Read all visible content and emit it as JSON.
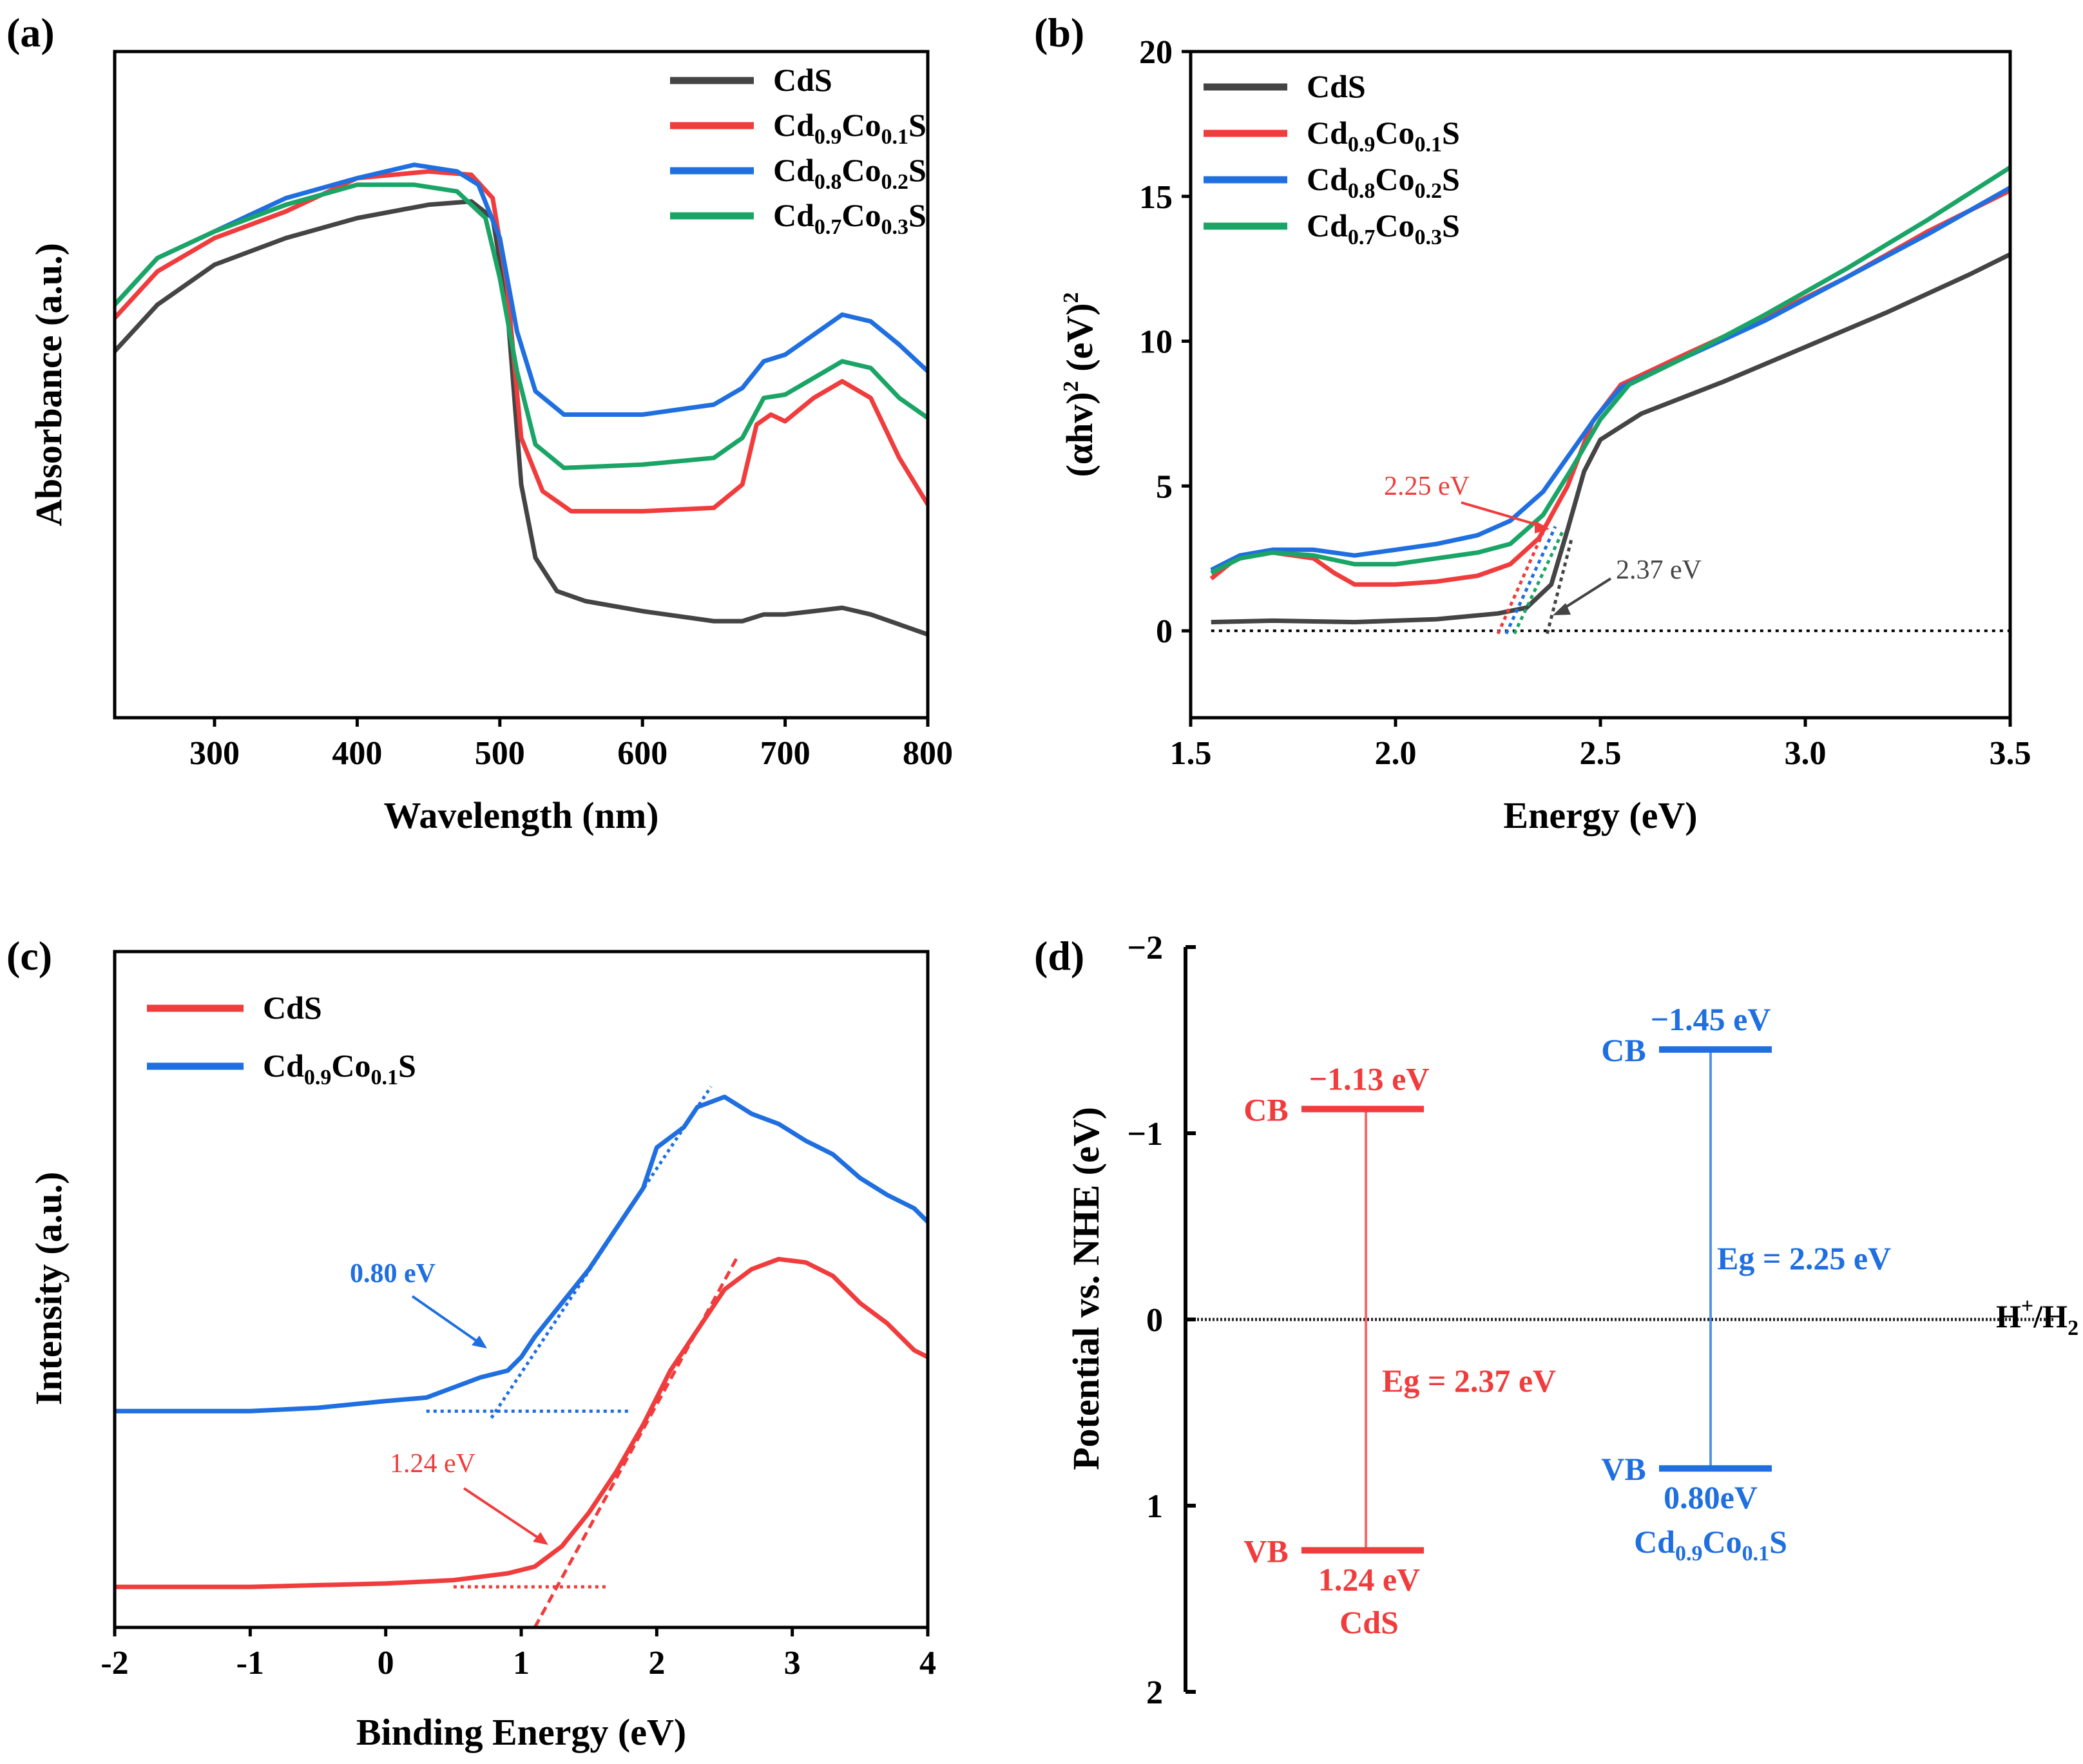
{
  "chart_data": [
    {
      "id": "a",
      "type": "line",
      "panel_label": "(a)",
      "xlabel": "Wavelength (nm)",
      "ylabel": "Absorbance (a.u.)",
      "xlim": [
        230,
        800
      ],
      "ylim": [
        0,
        1.0
      ],
      "xticks": [
        "300",
        "400",
        "500",
        "600",
        "700",
        "800"
      ],
      "yticks_shown": false,
      "legend_position": "top-right",
      "series": [
        {
          "name": "CdS",
          "base": "Cd",
          "sub1": "",
          "mid": "S",
          "sub2": "",
          "tail": "",
          "color": "#444444",
          "points": [
            [
              230,
              0.55
            ],
            [
              260,
              0.62
            ],
            [
              300,
              0.68
            ],
            [
              350,
              0.72
            ],
            [
              400,
              0.75
            ],
            [
              450,
              0.77
            ],
            [
              480,
              0.775
            ],
            [
              495,
              0.75
            ],
            [
              505,
              0.62
            ],
            [
              515,
              0.35
            ],
            [
              525,
              0.24
            ],
            [
              540,
              0.19
            ],
            [
              560,
              0.175
            ],
            [
              600,
              0.16
            ],
            [
              650,
              0.145
            ],
            [
              670,
              0.145
            ],
            [
              685,
              0.155
            ],
            [
              700,
              0.155
            ],
            [
              720,
              0.16
            ],
            [
              740,
              0.165
            ],
            [
              760,
              0.155
            ],
            [
              780,
              0.14
            ],
            [
              800,
              0.125
            ]
          ]
        },
        {
          "name": "Cd0.9Co0.1S",
          "base": "Cd",
          "sub1": "0.9",
          "mid": "Co",
          "sub2": "0.1",
          "tail": "S",
          "color": "#f03c3c",
          "points": [
            [
              230,
              0.6
            ],
            [
              260,
              0.67
            ],
            [
              300,
              0.72
            ],
            [
              350,
              0.76
            ],
            [
              400,
              0.81
            ],
            [
              450,
              0.82
            ],
            [
              480,
              0.815
            ],
            [
              495,
              0.78
            ],
            [
              505,
              0.65
            ],
            [
              515,
              0.42
            ],
            [
              530,
              0.34
            ],
            [
              550,
              0.31
            ],
            [
              600,
              0.31
            ],
            [
              650,
              0.315
            ],
            [
              670,
              0.35
            ],
            [
              680,
              0.44
            ],
            [
              690,
              0.455
            ],
            [
              700,
              0.445
            ],
            [
              720,
              0.48
            ],
            [
              740,
              0.505
            ],
            [
              760,
              0.48
            ],
            [
              780,
              0.39
            ],
            [
              800,
              0.32
            ]
          ]
        },
        {
          "name": "Cd0.8Co0.2S",
          "base": "Cd",
          "sub1": "0.8",
          "mid": "Co",
          "sub2": "0.2",
          "tail": "S",
          "color": "#1f6fe0",
          "points": [
            [
              230,
              0.62
            ],
            [
              260,
              0.69
            ],
            [
              300,
              0.73
            ],
            [
              350,
              0.78
            ],
            [
              400,
              0.81
            ],
            [
              440,
              0.83
            ],
            [
              470,
              0.82
            ],
            [
              485,
              0.8
            ],
            [
              500,
              0.72
            ],
            [
              512,
              0.58
            ],
            [
              525,
              0.49
            ],
            [
              545,
              0.455
            ],
            [
              600,
              0.455
            ],
            [
              650,
              0.47
            ],
            [
              670,
              0.495
            ],
            [
              685,
              0.535
            ],
            [
              700,
              0.545
            ],
            [
              720,
              0.575
            ],
            [
              740,
              0.605
            ],
            [
              760,
              0.595
            ],
            [
              780,
              0.56
            ],
            [
              800,
              0.52
            ]
          ]
        },
        {
          "name": "Cd0.7Co0.3S",
          "base": "Cd",
          "sub1": "0.7",
          "mid": "Co",
          "sub2": "0.3",
          "tail": "S",
          "color": "#1aa566",
          "points": [
            [
              230,
              0.62
            ],
            [
              260,
              0.69
            ],
            [
              300,
              0.73
            ],
            [
              350,
              0.77
            ],
            [
              400,
              0.8
            ],
            [
              440,
              0.8
            ],
            [
              470,
              0.79
            ],
            [
              490,
              0.75
            ],
            [
              500,
              0.66
            ],
            [
              512,
              0.52
            ],
            [
              525,
              0.41
            ],
            [
              545,
              0.375
            ],
            [
              600,
              0.38
            ],
            [
              650,
              0.39
            ],
            [
              670,
              0.42
            ],
            [
              685,
              0.48
            ],
            [
              700,
              0.485
            ],
            [
              720,
              0.51
            ],
            [
              740,
              0.535
            ],
            [
              760,
              0.525
            ],
            [
              780,
              0.48
            ],
            [
              800,
              0.45
            ]
          ]
        }
      ]
    },
    {
      "id": "b",
      "type": "line",
      "panel_label": "(b)",
      "xlabel": "Energy (eV)",
      "ylabel_base": "(αhv)",
      "ylabel_sup1": "2",
      "ylabel_mid": " (eV)",
      "ylabel_sup2": "2",
      "xlim": [
        1.5,
        3.5
      ],
      "ylim": [
        -3,
        20
      ],
      "xticks": [
        "1.5",
        "2.0",
        "2.5",
        "3.0",
        "3.5"
      ],
      "yticks": [
        "0",
        "5",
        "10",
        "15",
        "20"
      ],
      "legend_position": "top-left",
      "annotations": [
        "2.25 eV",
        "2.37 eV"
      ],
      "series": [
        {
          "name": "CdS",
          "base": "Cd",
          "sub1": "",
          "mid": "S",
          "sub2": "",
          "tail": "",
          "color": "#444444",
          "points": [
            [
              1.55,
              0.3
            ],
            [
              1.7,
              0.35
            ],
            [
              1.9,
              0.3
            ],
            [
              2.1,
              0.4
            ],
            [
              2.25,
              0.6
            ],
            [
              2.32,
              0.8
            ],
            [
              2.38,
              1.6
            ],
            [
              2.42,
              3.5
            ],
            [
              2.46,
              5.5
            ],
            [
              2.5,
              6.6
            ],
            [
              2.6,
              7.5
            ],
            [
              2.8,
              8.6
            ],
            [
              3.0,
              9.8
            ],
            [
              3.2,
              11.0
            ],
            [
              3.4,
              12.3
            ],
            [
              3.5,
              13.0
            ]
          ]
        },
        {
          "name": "Cd0.9Co0.1S",
          "base": "Cd",
          "sub1": "0.9",
          "mid": "Co",
          "sub2": "0.1",
          "tail": "S",
          "color": "#f03c3c",
          "points": [
            [
              1.55,
              1.8
            ],
            [
              1.62,
              2.6
            ],
            [
              1.7,
              2.7
            ],
            [
              1.8,
              2.5
            ],
            [
              1.85,
              2.0
            ],
            [
              1.9,
              1.6
            ],
            [
              2.0,
              1.6
            ],
            [
              2.1,
              1.7
            ],
            [
              2.2,
              1.9
            ],
            [
              2.28,
              2.3
            ],
            [
              2.35,
              3.2
            ],
            [
              2.42,
              5.0
            ],
            [
              2.48,
              7.2
            ],
            [
              2.55,
              8.5
            ],
            [
              2.7,
              9.5
            ],
            [
              2.9,
              10.8
            ],
            [
              3.1,
              12.2
            ],
            [
              3.3,
              13.8
            ],
            [
              3.5,
              15.2
            ]
          ]
        },
        {
          "name": "Cd0.8Co0.2S",
          "base": "Cd",
          "sub1": "0.8",
          "mid": "Co",
          "sub2": "0.2",
          "tail": "S",
          "color": "#1f6fe0",
          "points": [
            [
              1.55,
              2.1
            ],
            [
              1.62,
              2.6
            ],
            [
              1.7,
              2.8
            ],
            [
              1.8,
              2.8
            ],
            [
              1.9,
              2.6
            ],
            [
              2.0,
              2.8
            ],
            [
              2.1,
              3.0
            ],
            [
              2.2,
              3.3
            ],
            [
              2.28,
              3.8
            ],
            [
              2.36,
              4.8
            ],
            [
              2.43,
              6.2
            ],
            [
              2.49,
              7.4
            ],
            [
              2.55,
              8.4
            ],
            [
              2.7,
              9.4
            ],
            [
              2.9,
              10.7
            ],
            [
              3.1,
              12.2
            ],
            [
              3.3,
              13.7
            ],
            [
              3.5,
              15.3
            ]
          ]
        },
        {
          "name": "Cd0.7Co0.3S",
          "base": "Cd",
          "sub1": "0.7",
          "mid": "Co",
          "sub2": "0.3",
          "tail": "S",
          "color": "#1aa566",
          "points": [
            [
              1.55,
              2.0
            ],
            [
              1.62,
              2.5
            ],
            [
              1.7,
              2.7
            ],
            [
              1.8,
              2.6
            ],
            [
              1.9,
              2.3
            ],
            [
              2.0,
              2.3
            ],
            [
              2.1,
              2.5
            ],
            [
              2.2,
              2.7
            ],
            [
              2.28,
              3.0
            ],
            [
              2.36,
              4.0
            ],
            [
              2.43,
              5.6
            ],
            [
              2.5,
              7.3
            ],
            [
              2.57,
              8.5
            ],
            [
              2.7,
              9.4
            ],
            [
              2.9,
              10.9
            ],
            [
              3.1,
              12.5
            ],
            [
              3.3,
              14.2
            ],
            [
              3.5,
              16.0
            ]
          ]
        }
      ]
    },
    {
      "id": "c",
      "type": "line",
      "panel_label": "(c)",
      "xlabel": "Binding Energy (eV)",
      "ylabel": "Intensity (a.u.)",
      "xlim": [
        -2,
        4
      ],
      "ylim": [
        0,
        1.0
      ],
      "xticks": [
        "-2",
        "-1",
        "0",
        "1",
        "2",
        "3",
        "4"
      ],
      "yticks_shown": false,
      "legend_position": "top-left",
      "annotations": [
        "0.80 eV",
        "1.24 eV"
      ],
      "series": [
        {
          "name": "CdS",
          "base": "CdS",
          "sub1": "",
          "mid": "",
          "sub2": "",
          "tail": "",
          "color": "#f03c3c",
          "points": [
            [
              -2,
              0.06
            ],
            [
              -1,
              0.06
            ],
            [
              0,
              0.065
            ],
            [
              0.5,
              0.07
            ],
            [
              0.9,
              0.08
            ],
            [
              1.1,
              0.09
            ],
            [
              1.3,
              0.12
            ],
            [
              1.5,
              0.17
            ],
            [
              1.7,
              0.23
            ],
            [
              1.9,
              0.3
            ],
            [
              2.1,
              0.38
            ],
            [
              2.3,
              0.44
            ],
            [
              2.5,
              0.5
            ],
            [
              2.7,
              0.53
            ],
            [
              2.9,
              0.545
            ],
            [
              3.1,
              0.54
            ],
            [
              3.3,
              0.52
            ],
            [
              3.5,
              0.48
            ],
            [
              3.7,
              0.45
            ],
            [
              3.9,
              0.41
            ],
            [
              4.0,
              0.4
            ]
          ]
        },
        {
          "name": "Cd0.9Co0.1S",
          "base": "Cd",
          "sub1": "0.9",
          "mid": "Co",
          "sub2": "0.1",
          "tail": "S",
          "color": "#1f6fe0",
          "points": [
            [
              -2,
              0.32
            ],
            [
              -1,
              0.32
            ],
            [
              -0.5,
              0.325
            ],
            [
              0,
              0.335
            ],
            [
              0.3,
              0.34
            ],
            [
              0.5,
              0.355
            ],
            [
              0.7,
              0.37
            ],
            [
              0.9,
              0.38
            ],
            [
              1.0,
              0.4
            ],
            [
              1.1,
              0.43
            ],
            [
              1.3,
              0.48
            ],
            [
              1.5,
              0.53
            ],
            [
              1.7,
              0.59
            ],
            [
              1.9,
              0.65
            ],
            [
              2.0,
              0.71
            ],
            [
              2.2,
              0.74
            ],
            [
              2.3,
              0.77
            ],
            [
              2.5,
              0.785
            ],
            [
              2.7,
              0.76
            ],
            [
              2.9,
              0.745
            ],
            [
              3.1,
              0.72
            ],
            [
              3.3,
              0.7
            ],
            [
              3.5,
              0.665
            ],
            [
              3.7,
              0.64
            ],
            [
              3.9,
              0.62
            ],
            [
              4.0,
              0.6
            ]
          ]
        }
      ]
    },
    {
      "id": "d",
      "type": "band-diagram",
      "panel_label": "(d)",
      "ylabel": "Potential vs. NHE (eV)",
      "ylim": [
        -2,
        2
      ],
      "yticks": [
        "−2",
        "−1",
        "0",
        "1",
        "2"
      ],
      "reference_label": "H",
      "reference_sup1": "+",
      "reference_mid": "/H",
      "reference_sub2": "2",
      "materials": [
        {
          "name": "CdS",
          "color": "#f03c3c",
          "cb": -1.13,
          "vb": 1.24,
          "cb_label": "CB",
          "vb_label": "VB",
          "cb_value": "−1.13 eV",
          "vb_value": "1.24 eV",
          "eg_label": "Eg = 2.37 eV",
          "title_base": "CdS",
          "title_sub1": "",
          "title_mid": "",
          "title_sub2": "",
          "title_tail": ""
        },
        {
          "name": "Cd0.9Co0.1S",
          "color": "#1f6fe0",
          "cb": -1.45,
          "vb": 0.8,
          "cb_label": "CB",
          "vb_label": "VB",
          "cb_value": "−1.45 eV",
          "vb_value": "0.80eV",
          "eg_label": "Eg = 2.25 eV",
          "title_base": "Cd",
          "title_sub1": "0.9",
          "title_mid": "Co",
          "title_sub2": "0.1",
          "title_tail": "S"
        }
      ]
    }
  ]
}
